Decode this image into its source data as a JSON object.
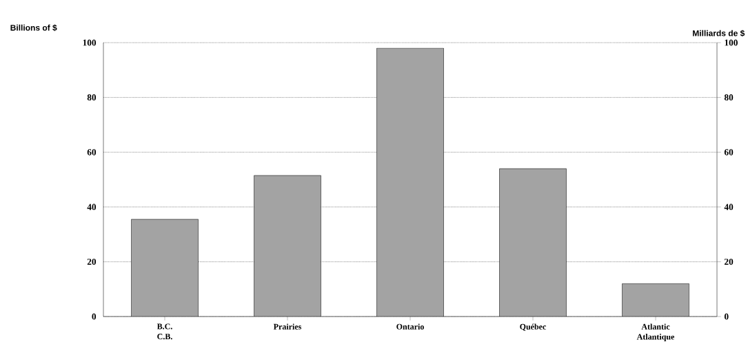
{
  "chart_data": {
    "type": "bar",
    "ylabel": "Billions of $",
    "y2label": "Milliards de $",
    "categories": [
      "B.C.\nC.B.",
      "Prairies",
      "Ontario",
      "Québec",
      "Atlantic\nAtlantique"
    ],
    "values": [
      35.5,
      51.5,
      98,
      54,
      12
    ],
    "color": "#a3a3a3",
    "ylim": [
      0,
      100
    ],
    "yticks": [
      0,
      20,
      40,
      60,
      80,
      100
    ],
    "y2lim": [
      0,
      100
    ],
    "y2ticks": [
      0,
      20,
      40,
      60,
      80,
      100
    ],
    "grid": "y"
  }
}
